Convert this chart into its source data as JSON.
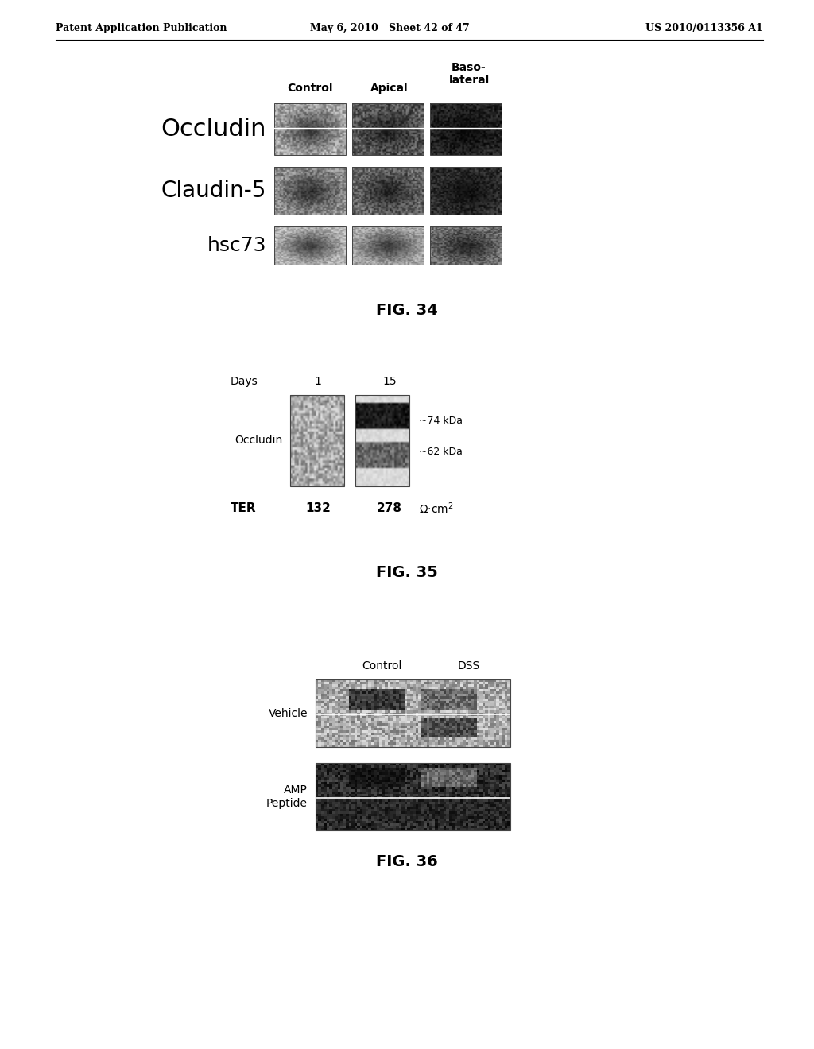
{
  "page_header_left": "Patent Application Publication",
  "page_header_mid": "May 6, 2010   Sheet 42 of 47",
  "page_header_right": "US 2010/0113356 A1",
  "fig34": {
    "caption": "FIG. 34",
    "col_labels": [
      "Control",
      "Apical",
      "Baso-\nlateral"
    ],
    "row_labels": [
      "Occludin",
      "Claudin-5",
      "hsc73"
    ],
    "row_label_sizes": [
      22,
      20,
      18
    ]
  },
  "fig35": {
    "caption": "FIG. 35",
    "annot_74": "~74 kDa",
    "annot_62": "~62 kDa"
  },
  "fig36": {
    "caption": "FIG. 36",
    "col_labels": [
      "Control",
      "DSS"
    ],
    "row_labels": [
      "Vehicle",
      "AMP\nPeptide"
    ]
  },
  "bg_color": "#ffffff",
  "text_color": "#000000"
}
